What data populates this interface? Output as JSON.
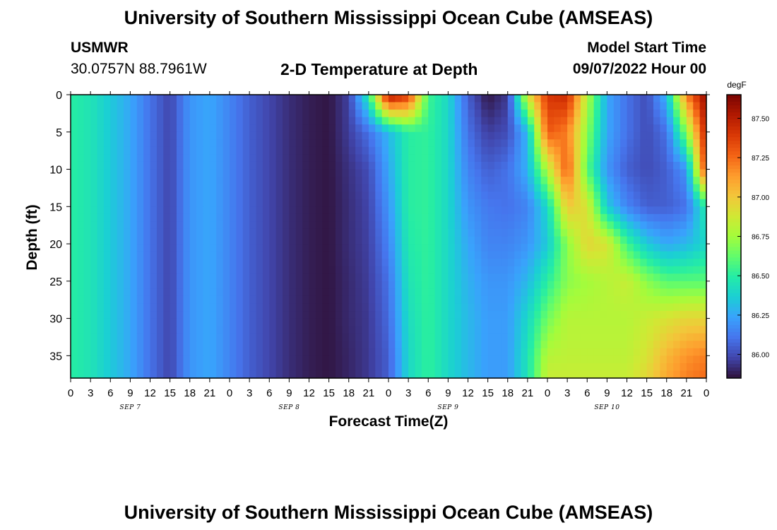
{
  "header": {
    "title": "University of Southern Mississippi Ocean Cube (AMSEAS)",
    "station": "USMWR",
    "coords": "30.0757N  88.7961W",
    "subtitle": "2-D Temperature at Depth",
    "model_label": "Model Start Time",
    "model_start": "09/07/2022 Hour 00",
    "repeat_title": "University of Southern Mississippi Ocean Cube (AMSEAS)"
  },
  "colors": {
    "scale": [
      "#30123b",
      "#4145ab",
      "#4675ed",
      "#39a2fc",
      "#1bcfd4",
      "#24eca6",
      "#61fc6c",
      "#a4fc3b",
      "#d1e834",
      "#f3c63a",
      "#fe9b2d",
      "#f36315",
      "#d93806",
      "#b11901",
      "#7a0402"
    ]
  },
  "chart_data": {
    "type": "heatmap",
    "title": "2-D Temperature at Depth",
    "xlabel": "Forecast Time(Z)",
    "ylabel": "Depth (ft)",
    "x_tick_labels": [
      "0",
      "3",
      "6",
      "9",
      "12",
      "15",
      "18",
      "21",
      "0",
      "3",
      "6",
      "9",
      "12",
      "15",
      "18",
      "21",
      "0",
      "3",
      "6",
      "9",
      "12",
      "15",
      "18",
      "21",
      "0",
      "3",
      "6",
      "9",
      "12",
      "15",
      "18",
      "21",
      "0"
    ],
    "x_day_labels": [
      "SEP 7",
      "SEP 8",
      "SEP 9",
      "SEP 10"
    ],
    "x_range_hours": [
      0,
      96
    ],
    "y_ticks": [
      0,
      5,
      10,
      15,
      20,
      25,
      30,
      35
    ],
    "y_range": [
      0,
      38
    ],
    "y_inverted": true,
    "colorbar": {
      "unit": "degF",
      "range": [
        85.85,
        87.65
      ],
      "ticks": [
        "87.50",
        "87.25",
        "87.00",
        "86.75",
        "86.50",
        "86.25",
        "86.00"
      ]
    },
    "hours": [
      0,
      3,
      6,
      9,
      12,
      15,
      18,
      21,
      24,
      27,
      30,
      33,
      36,
      39,
      42,
      45,
      48,
      51,
      54,
      57,
      60,
      63,
      66,
      69,
      72,
      75,
      78,
      81,
      84,
      87,
      90,
      93,
      96
    ],
    "depths": [
      0,
      5,
      10,
      15,
      20,
      25,
      30,
      35,
      38
    ],
    "values_degF": [
      [
        86.5,
        86.45,
        86.35,
        86.25,
        86.1,
        85.98,
        86.2,
        86.25,
        86.15,
        86.05,
        85.98,
        85.92,
        85.88,
        85.86,
        85.97,
        86.5,
        87.55,
        87.4,
        86.55,
        86.4,
        86.05,
        85.86,
        85.95,
        86.9,
        87.4,
        87.45,
        86.8,
        86.25,
        86.1,
        86.0,
        86.3,
        87.2,
        87.6
      ],
      [
        86.5,
        86.45,
        86.35,
        86.25,
        86.1,
        85.98,
        86.2,
        86.25,
        86.15,
        86.05,
        85.98,
        85.92,
        85.88,
        85.86,
        85.96,
        86.1,
        86.3,
        86.5,
        86.52,
        86.4,
        86.1,
        85.96,
        86.0,
        86.3,
        87.3,
        87.2,
        86.7,
        86.25,
        86.1,
        86.0,
        86.1,
        86.7,
        87.5
      ],
      [
        86.5,
        86.45,
        86.35,
        86.25,
        86.1,
        85.98,
        86.2,
        86.25,
        86.15,
        86.05,
        85.98,
        85.92,
        85.88,
        85.86,
        85.93,
        86.0,
        86.25,
        86.5,
        86.52,
        86.4,
        86.15,
        86.05,
        86.1,
        86.28,
        86.8,
        87.3,
        86.6,
        86.2,
        86.05,
        86.0,
        86.05,
        86.2,
        87.4
      ],
      [
        86.5,
        86.45,
        86.35,
        86.25,
        86.1,
        85.98,
        86.2,
        86.25,
        86.15,
        86.05,
        85.98,
        85.92,
        85.88,
        85.86,
        85.92,
        85.98,
        86.2,
        86.5,
        86.52,
        86.4,
        86.2,
        86.12,
        86.1,
        86.15,
        86.4,
        87.0,
        86.9,
        86.35,
        86.15,
        86.05,
        86.05,
        86.1,
        86.5
      ],
      [
        86.5,
        86.45,
        86.35,
        86.25,
        86.1,
        85.98,
        86.2,
        86.25,
        86.15,
        86.05,
        85.98,
        85.92,
        85.88,
        85.86,
        85.92,
        85.97,
        86.15,
        86.48,
        86.52,
        86.4,
        86.25,
        86.15,
        86.15,
        86.2,
        86.35,
        86.7,
        86.95,
        86.9,
        86.55,
        86.35,
        86.25,
        86.3,
        86.4
      ],
      [
        86.5,
        86.45,
        86.35,
        86.25,
        86.1,
        85.98,
        86.2,
        86.25,
        86.15,
        86.05,
        85.98,
        85.92,
        85.88,
        85.86,
        85.91,
        85.96,
        86.1,
        86.45,
        86.52,
        86.4,
        86.28,
        86.2,
        86.2,
        86.3,
        86.5,
        86.7,
        86.75,
        86.8,
        86.85,
        86.7,
        86.6,
        86.6,
        86.6
      ],
      [
        86.5,
        86.45,
        86.35,
        86.25,
        86.1,
        85.98,
        86.2,
        86.25,
        86.15,
        86.05,
        85.98,
        85.92,
        85.88,
        85.86,
        85.91,
        85.95,
        86.08,
        86.42,
        86.52,
        86.4,
        86.3,
        86.22,
        86.22,
        86.4,
        86.65,
        86.8,
        86.8,
        86.8,
        86.8,
        86.85,
        86.9,
        86.95,
        86.95
      ],
      [
        86.5,
        86.45,
        86.35,
        86.25,
        86.1,
        85.98,
        86.2,
        86.25,
        86.15,
        86.05,
        85.98,
        85.92,
        85.88,
        85.86,
        85.9,
        85.95,
        86.05,
        86.4,
        86.52,
        86.4,
        86.3,
        86.22,
        86.22,
        86.45,
        86.8,
        86.82,
        86.82,
        86.82,
        86.82,
        86.9,
        87.05,
        87.15,
        87.2
      ],
      [
        86.5,
        86.45,
        86.35,
        86.25,
        86.1,
        85.98,
        86.2,
        86.25,
        86.15,
        86.05,
        85.98,
        85.92,
        85.88,
        85.86,
        85.9,
        85.95,
        86.05,
        86.4,
        86.52,
        86.4,
        86.3,
        86.22,
        86.22,
        86.45,
        86.85,
        86.85,
        86.85,
        86.85,
        86.85,
        86.95,
        87.1,
        87.2,
        87.25
      ]
    ]
  }
}
